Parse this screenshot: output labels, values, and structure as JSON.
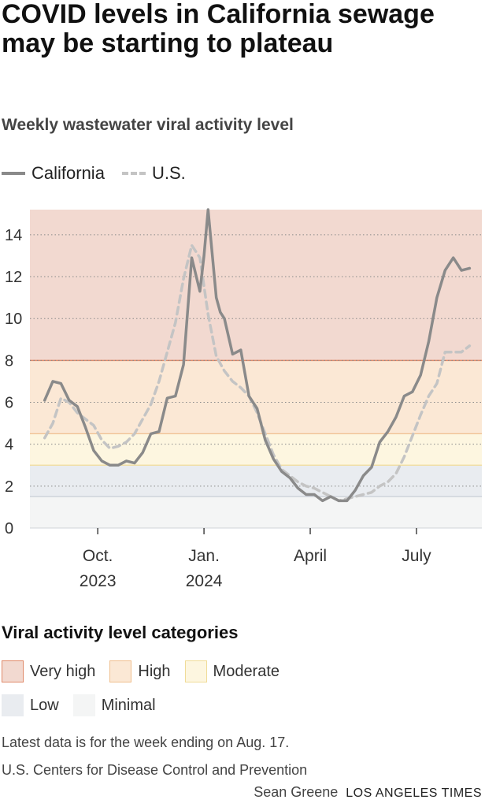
{
  "title": "COVID levels in California sewage may be starting to plateau",
  "subtitle": "Weekly wastewater viral activity level",
  "legend": {
    "california": "California",
    "us": "U.S."
  },
  "colors": {
    "california_line": "#8a8a8a",
    "us_line": "#c4c4c4",
    "very_high": "#f2d9d0",
    "high": "#fbe8d5",
    "moderate": "#fdf6e0",
    "low": "#e9ecf0",
    "minimal": "#f4f5f5",
    "very_high_border": "#e08a6a",
    "high_border": "#f0c090",
    "moderate_border": "#f0dc98"
  },
  "chart_data": {
    "type": "line",
    "x_unit": "weekly, week 0 = week ending ~Aug. 19, 2023",
    "x_ticks": [
      {
        "week": 6.5,
        "label1": "Oct.",
        "label2": "2023"
      },
      {
        "week": 19.5,
        "label1": "Jan.",
        "label2": "2024"
      },
      {
        "week": 32.5,
        "label1": "April",
        "label2": ""
      },
      {
        "week": 45.5,
        "label1": "July",
        "label2": ""
      }
    ],
    "ylim": [
      0,
      15.2
    ],
    "y_ticks": [
      0,
      2,
      4,
      6,
      8,
      10,
      12,
      14
    ],
    "xlim": [
      -1.8,
      53.5
    ],
    "thresholds": [
      {
        "name": "Minimal",
        "from": 0,
        "to": 1.5
      },
      {
        "name": "Low",
        "from": 1.5,
        "to": 3.0
      },
      {
        "name": "Moderate",
        "from": 3.0,
        "to": 4.5
      },
      {
        "name": "High",
        "from": 4.5,
        "to": 8.0
      },
      {
        "name": "Very high",
        "from": 8.0,
        "to": 15.2
      }
    ],
    "series": [
      {
        "name": "California",
        "weeks": [
          0,
          1,
          2,
          3,
          4,
          5,
          6,
          7,
          8,
          9,
          10,
          11,
          12,
          13,
          14,
          15,
          16,
          17,
          18,
          19,
          19.5,
          20,
          21,
          21.5,
          22,
          23,
          24,
          25,
          26,
          27,
          28,
          29,
          30,
          31,
          32,
          33,
          34,
          35,
          36,
          37,
          38,
          39,
          40,
          41,
          42,
          43,
          44,
          45,
          46,
          47,
          48,
          49,
          50,
          51,
          52
        ],
        "values": [
          6.1,
          7.0,
          6.9,
          6.1,
          5.8,
          4.8,
          3.7,
          3.2,
          3.0,
          3.0,
          3.2,
          3.1,
          3.6,
          4.5,
          4.6,
          6.2,
          6.3,
          7.8,
          12.9,
          11.3,
          13.0,
          15.2,
          11.0,
          10.3,
          10.0,
          8.3,
          8.5,
          6.3,
          5.7,
          4.2,
          3.3,
          2.7,
          2.4,
          1.9,
          1.6,
          1.6,
          1.3,
          1.5,
          1.3,
          1.3,
          1.8,
          2.5,
          2.9,
          4.1,
          4.6,
          5.3,
          6.3,
          6.5,
          7.3,
          8.9,
          11.0,
          12.3,
          12.9,
          12.3,
          12.4
        ]
      },
      {
        "name": "U.S.",
        "weeks": [
          0,
          1,
          2,
          3,
          4,
          5,
          6,
          7,
          8,
          9,
          10,
          11,
          12,
          13,
          14,
          15,
          16,
          17,
          18,
          19,
          20,
          21,
          22,
          23,
          24,
          25,
          26,
          27,
          28,
          29,
          30,
          31,
          32,
          33,
          34,
          35,
          36,
          37,
          38,
          39,
          40,
          41,
          42,
          43,
          44,
          45,
          46,
          47,
          48,
          49,
          50,
          51,
          52
        ],
        "values": [
          4.3,
          5.0,
          6.2,
          6.0,
          5.5,
          5.2,
          4.9,
          4.2,
          3.8,
          3.9,
          4.1,
          4.5,
          5.2,
          5.9,
          7.0,
          8.4,
          9.8,
          11.9,
          13.5,
          12.9,
          10.2,
          8.2,
          7.5,
          7.0,
          6.7,
          6.3,
          5.5,
          4.5,
          3.5,
          2.8,
          2.5,
          2.2,
          2.0,
          1.9,
          1.7,
          1.5,
          1.3,
          1.4,
          1.5,
          1.6,
          1.7,
          2.0,
          2.2,
          2.6,
          3.4,
          4.4,
          5.4,
          6.3,
          6.9,
          8.4,
          8.4,
          8.4,
          8.7
        ]
      }
    ]
  },
  "categories": {
    "title": "Viral activity level categories",
    "row1": [
      {
        "label": "Very high",
        "color": "#f2d9d0",
        "border": "#e08a6a"
      },
      {
        "label": "High",
        "color": "#fbe8d5",
        "border": "#f0c090"
      },
      {
        "label": "Moderate",
        "color": "#fdf6e0",
        "border": "#f0dc98"
      }
    ],
    "row2": [
      {
        "label": "Low",
        "color": "#e9ecf0",
        "border": "#e9ecf0"
      },
      {
        "label": "Minimal",
        "color": "#f4f5f5",
        "border": "#f4f5f5"
      }
    ]
  },
  "notes": {
    "latest": "Latest data is for the week ending on Aug. 17.",
    "source": "U.S. Centers for Disease Control and Prevention"
  },
  "footer": {
    "author": "Sean Greene",
    "brand": "LOS ANGELES TIMES"
  }
}
